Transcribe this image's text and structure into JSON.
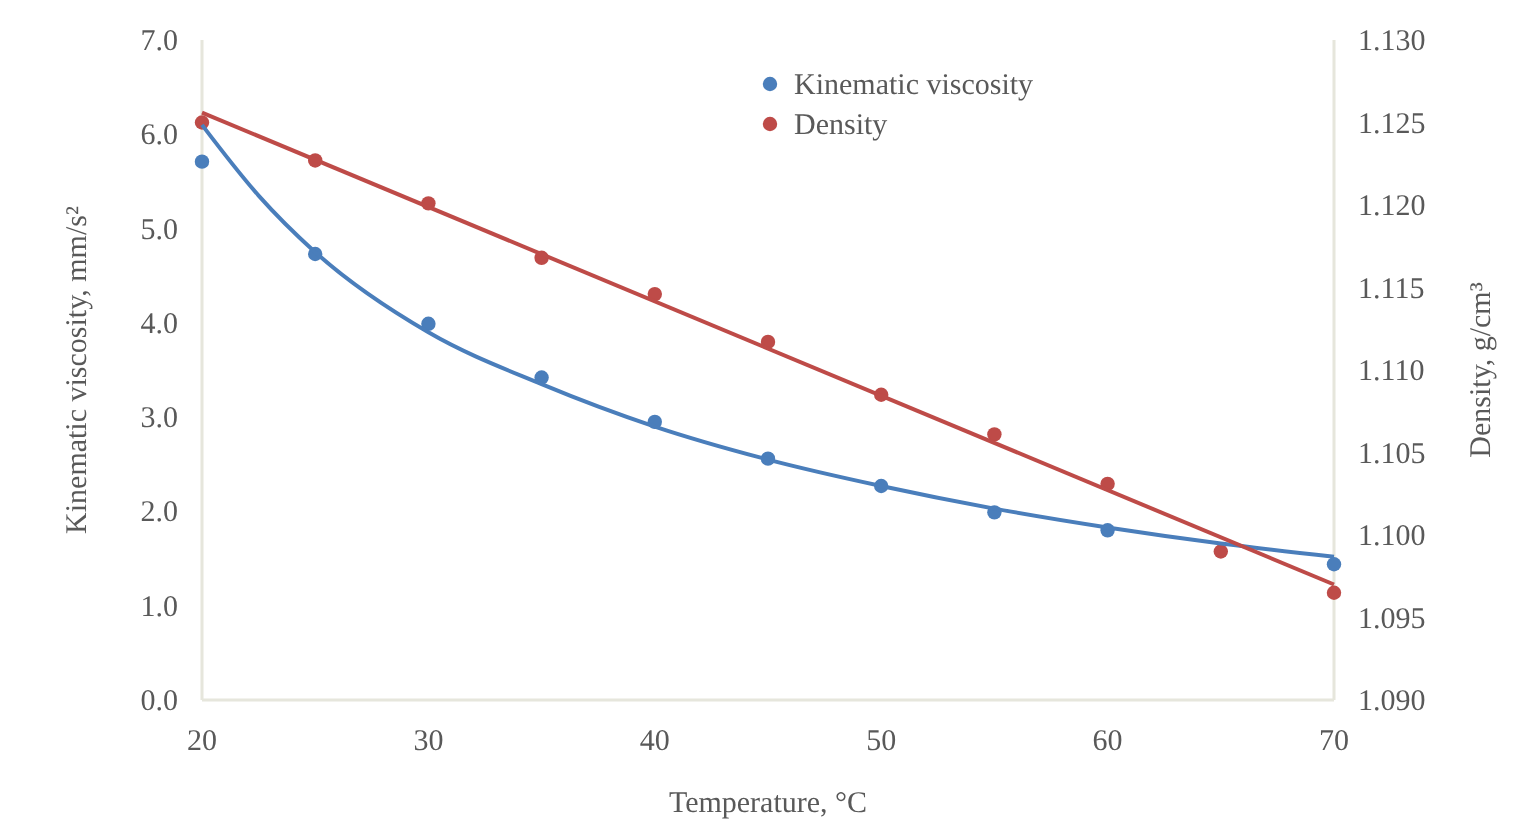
{
  "chart_data": {
    "type": "scatter",
    "xlabel": "Temperature, °C",
    "ylabel": "Kinematic viscosity, mm/s²",
    "y2label": "Density, g/cm³",
    "xlim": [
      20,
      70
    ],
    "xticks": [
      20,
      30,
      40,
      50,
      60,
      70
    ],
    "ylim": [
      0,
      7
    ],
    "yticks": [
      {
        "value": 0,
        "label": "0.0"
      },
      {
        "value": 1,
        "label": "1.0"
      },
      {
        "value": 2,
        "label": "2.0"
      },
      {
        "value": 3,
        "label": "3.0"
      },
      {
        "value": 4,
        "label": "4.0"
      },
      {
        "value": 5,
        "label": "5.0"
      },
      {
        "value": 6,
        "label": "6.0"
      },
      {
        "value": 7,
        "label": "7.0"
      }
    ],
    "y2lim": [
      1.09,
      1.13
    ],
    "y2ticks": [
      {
        "value": 1.09,
        "label": "1.090"
      },
      {
        "value": 1.095,
        "label": "1.095"
      },
      {
        "value": 1.1,
        "label": "1.100"
      },
      {
        "value": 1.105,
        "label": "1.105"
      },
      {
        "value": 1.11,
        "label": "1.110"
      },
      {
        "value": 1.115,
        "label": "1.115"
      },
      {
        "value": 1.12,
        "label": "1.120"
      },
      {
        "value": 1.125,
        "label": "1.125"
      },
      {
        "value": 1.13,
        "label": "1.130"
      }
    ],
    "grid": false,
    "legend": "top right",
    "marker": "circle",
    "series": [
      {
        "name": "Kinematic viscosity",
        "color": "#4a7ebb",
        "x": [
          20,
          25,
          30,
          35,
          40,
          45,
          50,
          55,
          60,
          65,
          70
        ],
        "values": [
          5.71,
          4.73,
          3.99,
          3.42,
          2.95,
          2.56,
          2.27,
          1.99,
          1.8,
          null,
          1.44
        ]
      },
      {
        "name": "Density",
        "color": "#be4b48",
        "axis": "y2",
        "x": [
          20,
          25,
          30,
          35,
          40,
          45,
          50,
          55,
          60,
          65,
          70
        ],
        "values": [
          1.125,
          1.1227,
          1.1201,
          1.1168,
          1.1146,
          1.1117,
          1.1085,
          1.1061,
          1.1031,
          1.099,
          1.0965
        ]
      },
      {
        "type": "line",
        "color": "#4a7ebb",
        "marker": "none",
        "x": [
          20,
          22.5,
          25,
          30,
          35,
          40,
          45,
          50,
          55,
          60,
          65,
          70
        ],
        "values": [
          6.1,
          5.35,
          4.75,
          3.9,
          3.35,
          2.9,
          2.55,
          2.27,
          2.03,
          1.83,
          1.66,
          1.52
        ]
      },
      {
        "type": "line",
        "color": "#be4b48",
        "marker": "none",
        "axis": "y2",
        "x": [
          20,
          70
        ],
        "values": [
          1.1256,
          1.097
        ]
      }
    ]
  }
}
